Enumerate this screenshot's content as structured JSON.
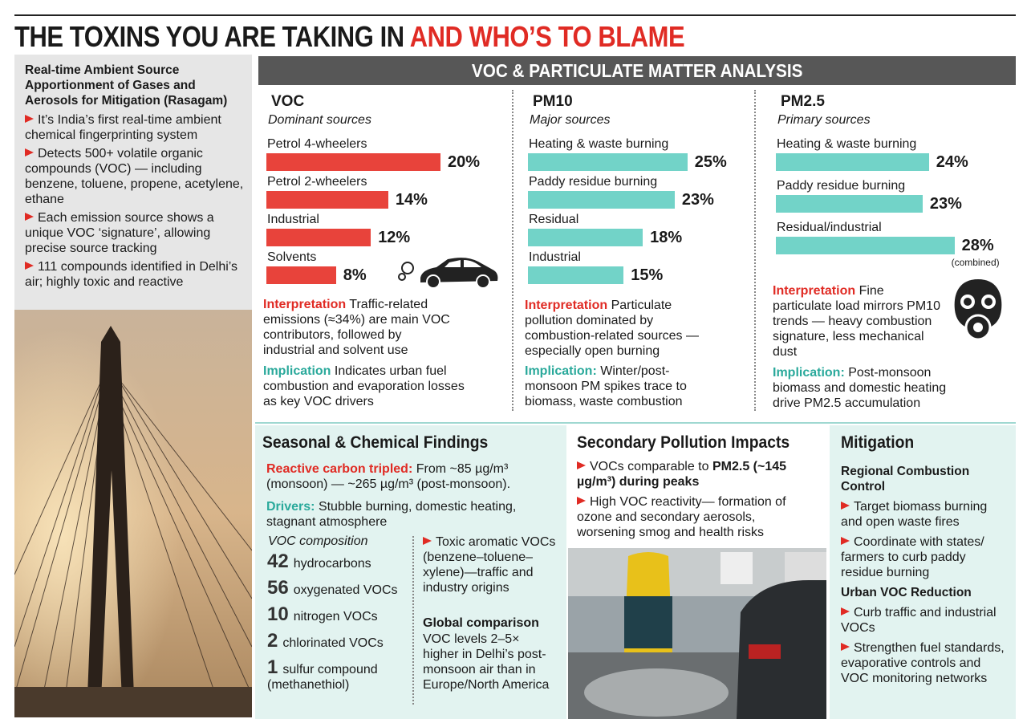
{
  "header": {
    "title_black": "THE TOXINS YOU ARE TAKING IN",
    "title_red": "AND WHO’S TO BLAME"
  },
  "intro": {
    "heading": "Real-time Ambient Source Apportionment of Gases and Aerosols for Mitigation (Rasagam)",
    "bullets": [
      "It’s India’s first real-time ambient chemical fingerprinting system",
      "Detects 500+ volatile organic compounds (VOC) — including benzene, toluene, propene, acetylene, ethane",
      "Each emission source shows a unique VOC ‘signature’, allowing precise source tracking",
      "111 compounds identified in Delhi’s air; highly toxic and reactive"
    ]
  },
  "analysis": {
    "title": "VOC & PARTICULATE MATTER ANALYSIS",
    "panels": [
      {
        "type": "bar",
        "name": "VOC",
        "subtitle": "Dominant sources",
        "categories": [
          "Petrol 4-wheelers",
          "Petrol 2-wheelers",
          "Industrial",
          "Solvents"
        ],
        "values": [
          20,
          14,
          12,
          8
        ],
        "value_labels": [
          "20%",
          "14%",
          "12%",
          "8%"
        ],
        "color": "#e8433b",
        "interpretation": {
          "label": "Interpretation",
          "text": "Traffic-related emissions (≈34%) are main VOC contributors, followed by industrial and solvent use"
        },
        "implication": {
          "label": "Implication",
          "text": "Indicates urban fuel combustion and evaporation losses as key VOC drivers"
        }
      },
      {
        "type": "bar",
        "name": "PM10",
        "subtitle": "Major sources",
        "categories": [
          "Heating & waste burning",
          "Paddy residue burning",
          "Residual",
          "Industrial"
        ],
        "values": [
          25,
          23,
          18,
          15
        ],
        "value_labels": [
          "25%",
          "23%",
          "18%",
          "15%"
        ],
        "color": "#72d3c8",
        "interpretation": {
          "label": "Interpretation",
          "text": "Particulate pollution dominated by combustion-related sources — especially open burning"
        },
        "implication": {
          "label": "Implication:",
          "text": "Winter/post-monsoon PM spikes trace to biomass, waste combustion"
        }
      },
      {
        "type": "bar",
        "name": "PM2.5",
        "subtitle": "Primary sources",
        "categories": [
          "Heating & waste burning",
          "Paddy residue burning",
          "Residual/industrial"
        ],
        "values": [
          24,
          23,
          28
        ],
        "value_labels": [
          "24%",
          "23%",
          "28%"
        ],
        "notes": [
          null,
          null,
          "(combined)"
        ],
        "color": "#72d3c8",
        "interpretation": {
          "label": "Interpretation",
          "text": "Fine particulate load mirrors PM10 trends — heavy combustion signature, less mechanical dust"
        },
        "implication": {
          "label": "Implication:",
          "text": "Post-monsoon biomass and domestic heating drive PM2.5 accumulation"
        }
      }
    ]
  },
  "seasonal": {
    "title": "Seasonal & Chemical Findings",
    "finding": {
      "label": "Reactive carbon tripled:",
      "text": "From ~85 µg/m³ (monsoon) — ~265 µg/m³ (post-monsoon)."
    },
    "drivers": {
      "label": "Drivers:",
      "text": "Stubble burning, domestic heating, stagnant atmosphere"
    },
    "composition_title": "VOC composition",
    "composition": [
      {
        "count": 42,
        "label": "hydrocarbons"
      },
      {
        "count": 56,
        "label": "oxygenated VOCs"
      },
      {
        "count": 10,
        "label": "nitrogen VOCs"
      },
      {
        "count": 2,
        "label": "chlorinated VOCs"
      },
      {
        "count": 1,
        "label": "sulfur compound (methanethiol)"
      }
    ],
    "toxic": "Toxic aromatic VOCs (benzene–toluene–xylene)—traffic and industry origins",
    "global_title": "Global comparison",
    "global_text": "VOC levels 2–5× higher in Delhi’s post-monsoon air than in Europe/North America"
  },
  "secondary": {
    "title": "Secondary Pollution Impacts",
    "bullets": [
      {
        "text": "VOCs comparable to",
        "bold": "PM2.5 (~145 µg/m³) during peaks"
      },
      {
        "text": "High VOC reactivity— formation of ozone and secondary aerosols, worsening smog and health risks"
      }
    ]
  },
  "mitigation": {
    "title": "Mitigation",
    "groups": [
      {
        "heading": "Regional Combustion Control",
        "bullets": [
          "Target biomass burning and open waste fires",
          "Coordinate with states/ farmers to curb paddy residue burning"
        ]
      },
      {
        "heading": "Urban VOC Reduction",
        "bullets": [
          "Curb traffic and industrial VOCs",
          "Strengthen fuel standards, evaporative controls and VOC monitoring networks"
        ]
      }
    ]
  }
}
